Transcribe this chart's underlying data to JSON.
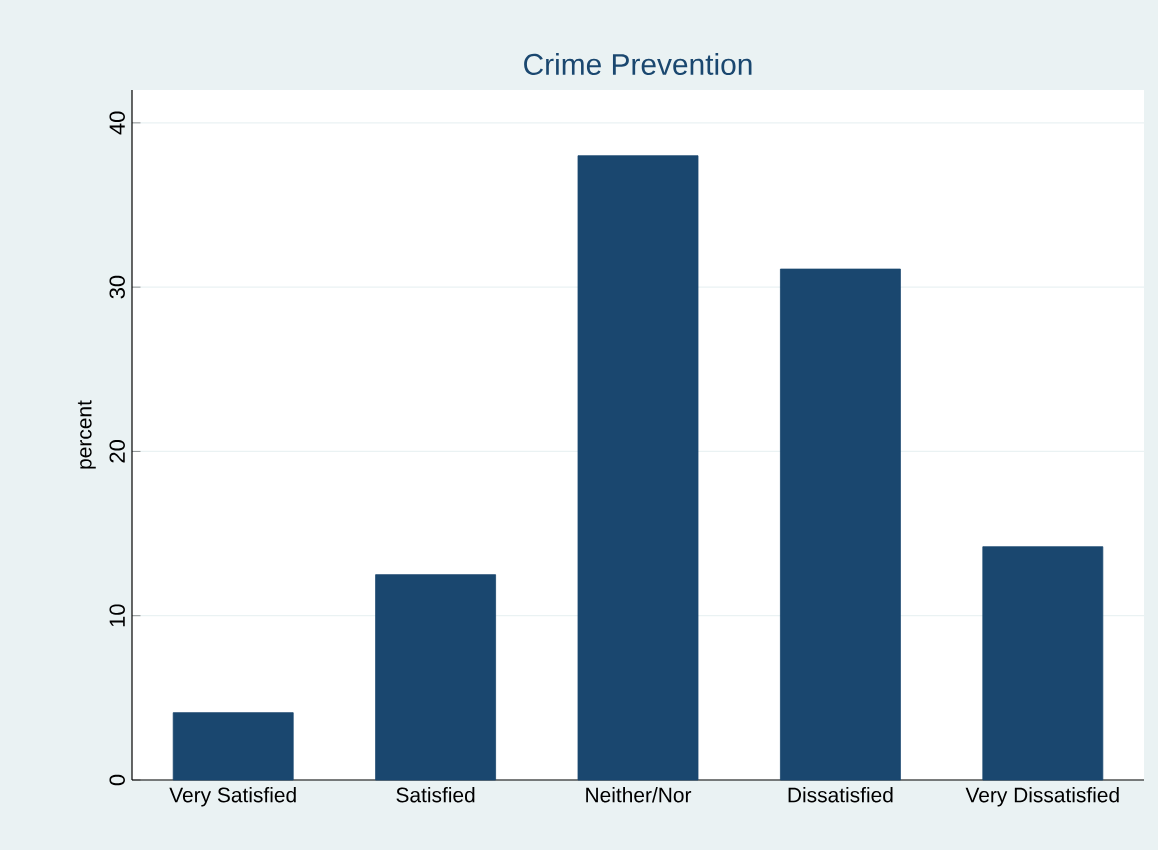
{
  "chart_data": {
    "type": "bar",
    "title": "Crime Prevention",
    "ylabel": "percent",
    "categories": [
      "Very Satisfied",
      "Satisfied",
      "Neither/Nor",
      "Dissatisfied",
      "Very Dissatisfied"
    ],
    "values": [
      4.1,
      12.5,
      38.0,
      31.1,
      14.2
    ],
    "color": "#1a476f",
    "ylim": [
      0,
      42
    ],
    "yticks": [
      0,
      10,
      20,
      30,
      40
    ],
    "grid": "y"
  }
}
